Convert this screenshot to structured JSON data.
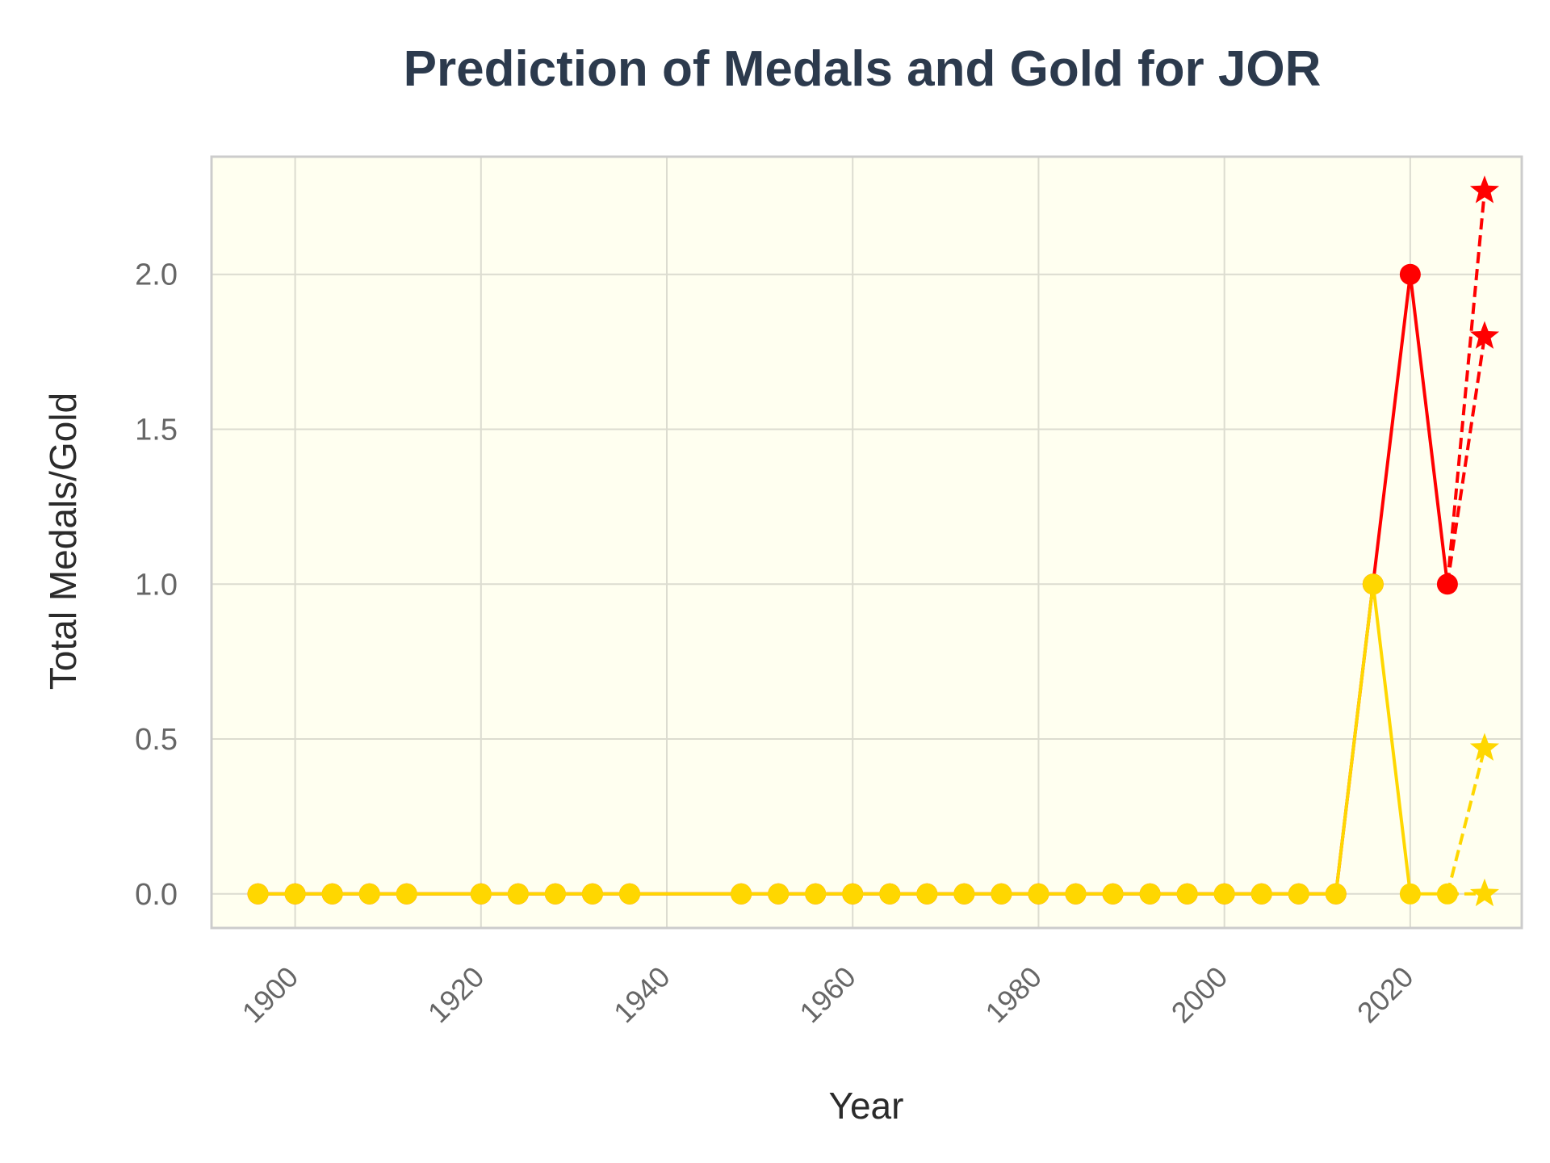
{
  "chart_data": {
    "type": "line",
    "title": "Prediction of Medals and Gold for JOR",
    "xlabel": "Year",
    "ylabel": "Total Medals/Gold",
    "xlim": [
      1891,
      2032
    ],
    "ylim": [
      -0.11,
      2.38
    ],
    "xticks": [
      1900,
      1920,
      1940,
      1960,
      1980,
      2000,
      2020
    ],
    "yticks": [
      0.0,
      0.5,
      1.0,
      1.5,
      2.0
    ],
    "xtick_labels": [
      "1900",
      "1920",
      "1940",
      "1960",
      "1980",
      "2000",
      "2020"
    ],
    "ytick_labels": [
      "0.0",
      "0.5",
      "1.0",
      "1.5",
      "2.0"
    ],
    "grid": true,
    "colors": {
      "total": "#ff0000",
      "gold": "#ffd700",
      "plot_background": "#fffff0",
      "plot_border": "#cccccc",
      "grid": "#dcdcd0"
    },
    "series": [
      {
        "style": "solid",
        "marker": "circle",
        "color": "#ff0000",
        "x": [
          1896,
          1900,
          1904,
          1908,
          1912,
          1920,
          1924,
          1928,
          1932,
          1936,
          1948,
          1952,
          1956,
          1960,
          1964,
          1968,
          1972,
          1976,
          1980,
          1984,
          1988,
          1992,
          1996,
          2000,
          2004,
          2008,
          2012,
          2016,
          2020,
          2024
        ],
        "values": [
          0,
          0,
          0,
          0,
          0,
          0,
          0,
          0,
          0,
          0,
          0,
          0,
          0,
          0,
          0,
          0,
          0,
          0,
          0,
          0,
          0,
          0,
          0,
          0,
          0,
          0,
          0,
          1,
          2,
          1
        ]
      },
      {
        "style": "solid",
        "marker": "circle",
        "color": "#ffd700",
        "x": [
          1896,
          1900,
          1904,
          1908,
          1912,
          1920,
          1924,
          1928,
          1932,
          1936,
          1948,
          1952,
          1956,
          1960,
          1964,
          1968,
          1972,
          1976,
          1980,
          1984,
          1988,
          1992,
          1996,
          2000,
          2004,
          2008,
          2012,
          2016,
          2020,
          2024
        ],
        "values": [
          0,
          0,
          0,
          0,
          0,
          0,
          0,
          0,
          0,
          0,
          0,
          0,
          0,
          0,
          0,
          0,
          0,
          0,
          0,
          0,
          0,
          0,
          0,
          0,
          0,
          0,
          0,
          1,
          0,
          0
        ]
      },
      {
        "style": "dashed",
        "marker": "star",
        "color": "#ff0000",
        "x": [
          2024,
          2028
        ],
        "values": [
          1,
          2.27
        ]
      },
      {
        "style": "dashed",
        "marker": "star",
        "color": "#ff0000",
        "x": [
          2024,
          2028
        ],
        "values": [
          1,
          1.8
        ]
      },
      {
        "style": "dashed",
        "marker": "star",
        "color": "#ffd700",
        "x": [
          2024,
          2028
        ],
        "values": [
          0,
          0.47
        ]
      },
      {
        "style": "dashed",
        "marker": "star",
        "color": "#ffd700",
        "x": [
          2024,
          2028
        ],
        "values": [
          0,
          0
        ]
      }
    ]
  }
}
